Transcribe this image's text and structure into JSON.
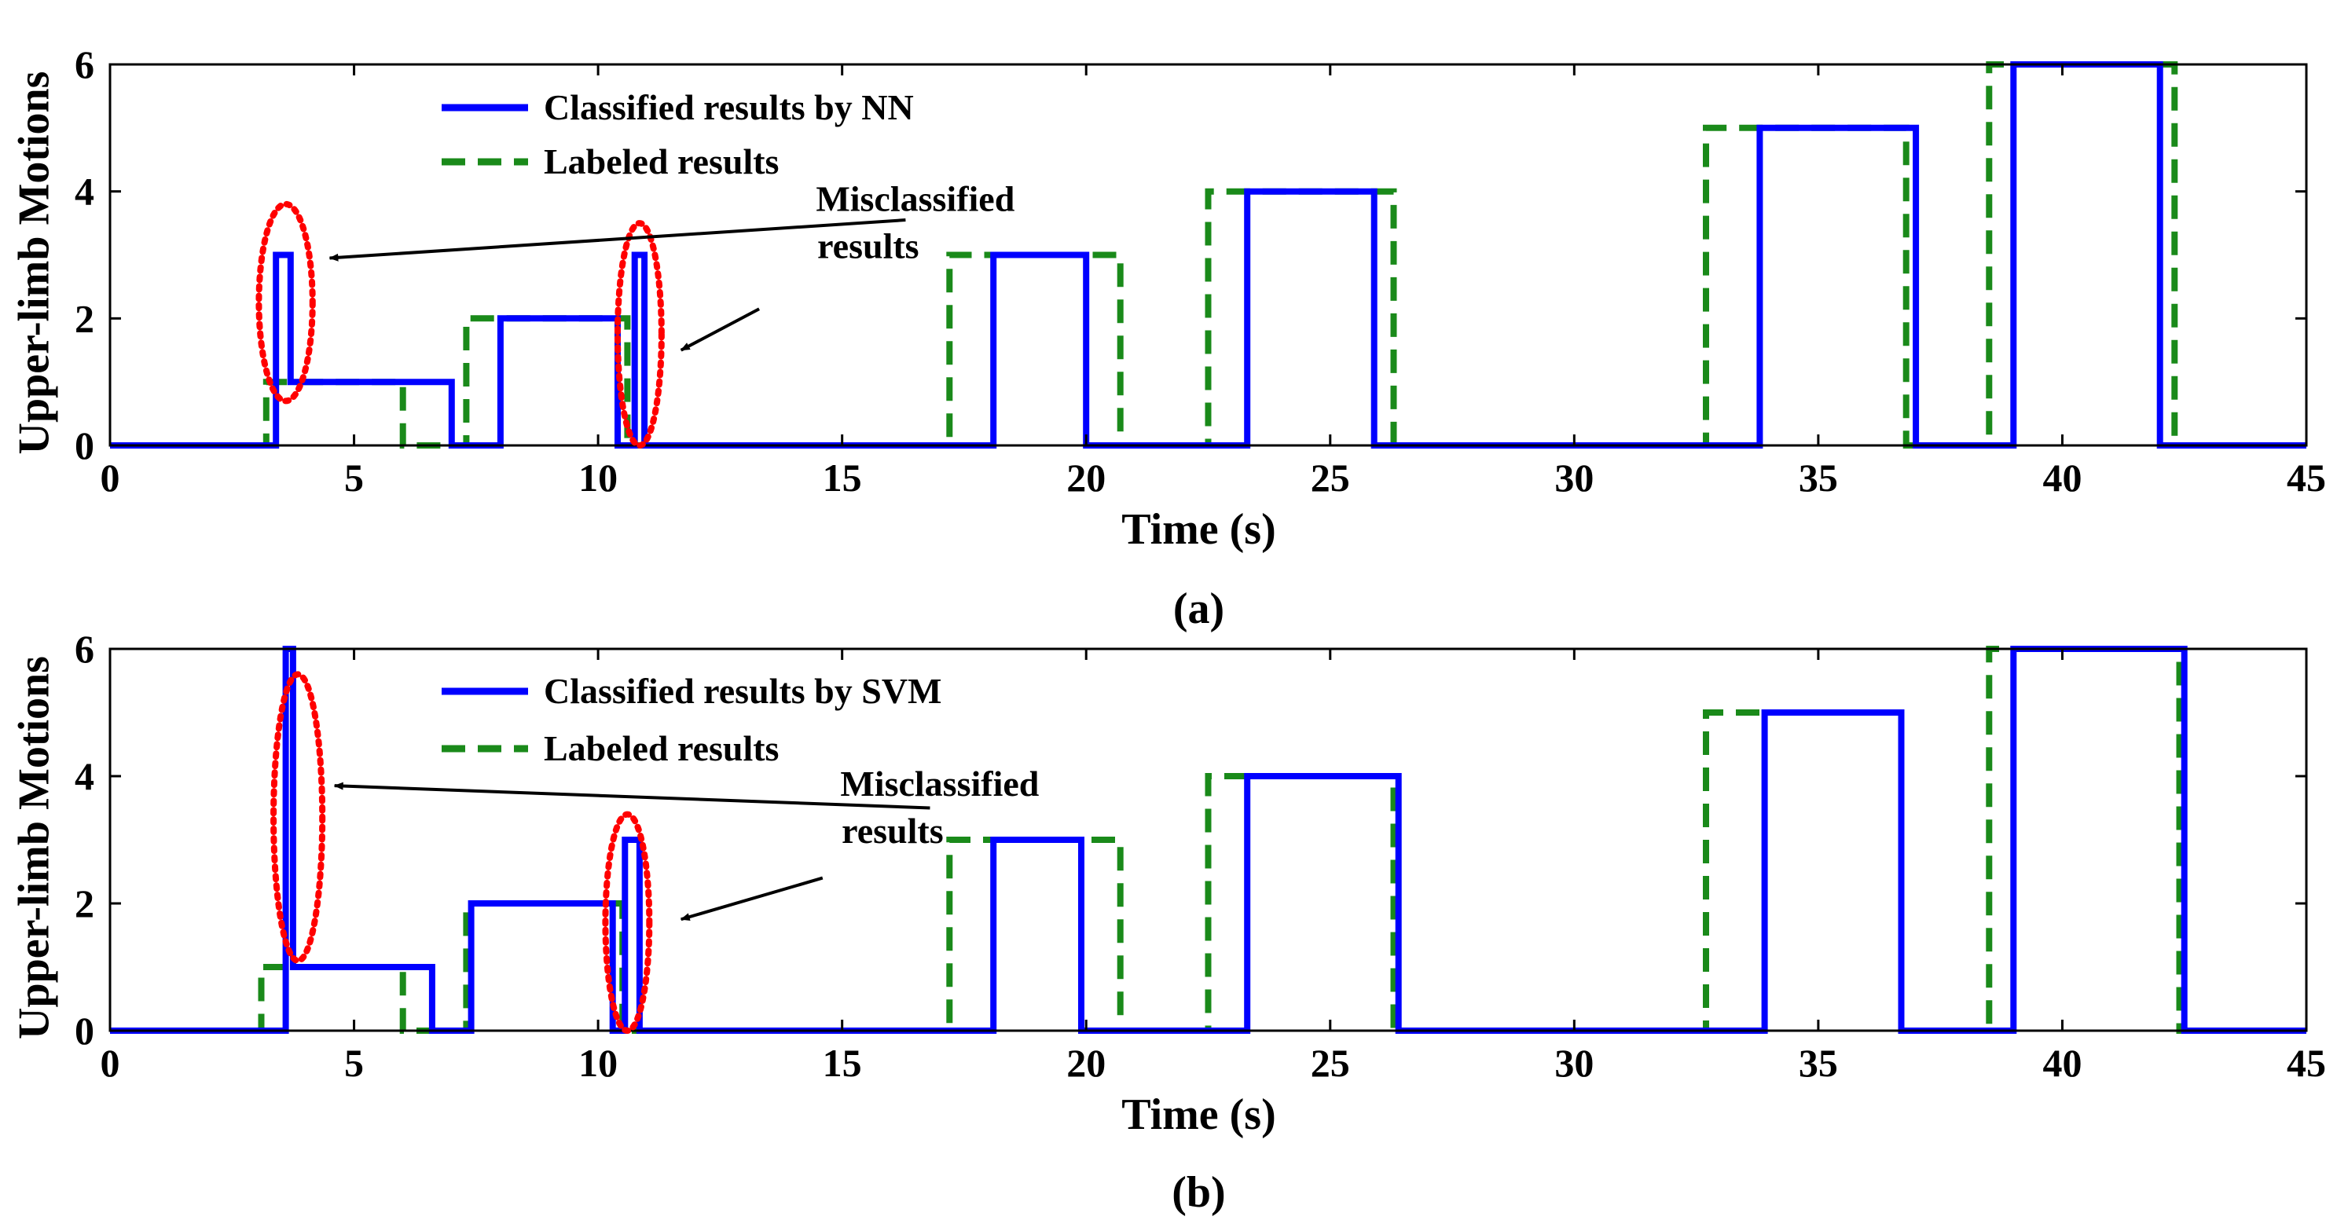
{
  "colors": {
    "classified": "#0000ff",
    "labeled": "#1a8a1a",
    "ellipse": "#ff0000",
    "axis": "#000000"
  },
  "chart_data": [
    {
      "type": "line",
      "panel": "a",
      "caption": "(a)",
      "xlabel": "Time (s)",
      "ylabel": "Upper-limb Motions",
      "xlim": [
        0,
        45
      ],
      "ylim": [
        0,
        6
      ],
      "xticks": [
        0,
        5,
        10,
        15,
        20,
        25,
        30,
        35,
        40,
        45
      ],
      "yticks": [
        0,
        2,
        4,
        6
      ],
      "series": [
        {
          "name": "Classified results by NN",
          "style": "solid",
          "points": [
            [
              0,
              0
            ],
            [
              3.4,
              0
            ],
            [
              3.4,
              3
            ],
            [
              3.7,
              3
            ],
            [
              3.7,
              1
            ],
            [
              7.0,
              1
            ],
            [
              7.0,
              0
            ],
            [
              8.0,
              0
            ],
            [
              8.0,
              2
            ],
            [
              10.4,
              2
            ],
            [
              10.4,
              0
            ],
            [
              10.75,
              0
            ],
            [
              10.75,
              3
            ],
            [
              10.95,
              3
            ],
            [
              10.95,
              0
            ],
            [
              18.1,
              0
            ],
            [
              18.1,
              3
            ],
            [
              20.0,
              3
            ],
            [
              20.0,
              0
            ],
            [
              23.3,
              0
            ],
            [
              23.3,
              4
            ],
            [
              25.9,
              4
            ],
            [
              25.9,
              0
            ],
            [
              33.8,
              0
            ],
            [
              33.8,
              5
            ],
            [
              37.0,
              5
            ],
            [
              37.0,
              0
            ],
            [
              39.0,
              0
            ],
            [
              39.0,
              6
            ],
            [
              42.0,
              6
            ],
            [
              42.0,
              0
            ],
            [
              45,
              0
            ]
          ]
        },
        {
          "name": "Labeled results",
          "style": "dashed",
          "points": [
            [
              0,
              0
            ],
            [
              3.2,
              0
            ],
            [
              3.2,
              1
            ],
            [
              6.0,
              1
            ],
            [
              6.0,
              0
            ],
            [
              7.3,
              0
            ],
            [
              7.3,
              2
            ],
            [
              10.6,
              2
            ],
            [
              10.6,
              0
            ],
            [
              17.2,
              0
            ],
            [
              17.2,
              3
            ],
            [
              20.7,
              3
            ],
            [
              20.7,
              0
            ],
            [
              22.5,
              0
            ],
            [
              22.5,
              4
            ],
            [
              26.3,
              4
            ],
            [
              26.3,
              0
            ],
            [
              32.7,
              0
            ],
            [
              32.7,
              5
            ],
            [
              36.8,
              5
            ],
            [
              36.8,
              0
            ],
            [
              38.5,
              0
            ],
            [
              38.5,
              6
            ],
            [
              42.3,
              6
            ],
            [
              42.3,
              0
            ],
            [
              45,
              0
            ]
          ]
        }
      ],
      "annotations": {
        "text_line1": "Misclassified",
        "text_line2": "results",
        "ellipses": [
          {
            "x_center": 3.6,
            "y_center": 2.25,
            "x_radius": 0.55,
            "y_radius": 1.55
          },
          {
            "x_center": 10.85,
            "y_center": 1.75,
            "x_radius": 0.45,
            "y_radius": 1.75
          }
        ],
        "arrows": [
          {
            "from": [
              16.3,
              3.55
            ],
            "to": [
              4.5,
              2.95
            ]
          },
          {
            "from": [
              13.3,
              2.15
            ],
            "to": [
              11.7,
              1.5
            ]
          }
        ],
        "text_anchor": [
          16.5,
          3.2
        ]
      }
    },
    {
      "type": "line",
      "panel": "b",
      "caption": "(b)",
      "xlabel": "Time (s)",
      "ylabel": "Upper-limb Motions",
      "xlim": [
        0,
        45
      ],
      "ylim": [
        0,
        6
      ],
      "xticks": [
        0,
        5,
        10,
        15,
        20,
        25,
        30,
        35,
        40,
        45
      ],
      "yticks": [
        0,
        2,
        4,
        6
      ],
      "series": [
        {
          "name": "Classified results by SVM",
          "style": "solid",
          "points": [
            [
              0,
              0
            ],
            [
              3.6,
              0
            ],
            [
              3.6,
              6
            ],
            [
              3.75,
              6
            ],
            [
              3.75,
              1
            ],
            [
              6.6,
              1
            ],
            [
              6.6,
              0
            ],
            [
              7.4,
              0
            ],
            [
              7.4,
              2
            ],
            [
              10.3,
              2
            ],
            [
              10.3,
              0
            ],
            [
              10.55,
              0
            ],
            [
              10.55,
              3
            ],
            [
              10.85,
              3
            ],
            [
              10.85,
              0
            ],
            [
              18.1,
              0
            ],
            [
              18.1,
              3
            ],
            [
              19.9,
              3
            ],
            [
              19.9,
              0
            ],
            [
              23.3,
              0
            ],
            [
              23.3,
              4
            ],
            [
              26.4,
              4
            ],
            [
              26.4,
              0
            ],
            [
              33.9,
              0
            ],
            [
              33.9,
              5
            ],
            [
              36.7,
              5
            ],
            [
              36.7,
              0
            ],
            [
              39.0,
              0
            ],
            [
              39.0,
              6
            ],
            [
              42.5,
              6
            ],
            [
              42.5,
              0
            ],
            [
              45,
              0
            ]
          ]
        },
        {
          "name": "Labeled results",
          "style": "dashed",
          "points": [
            [
              0,
              0
            ],
            [
              3.1,
              0
            ],
            [
              3.1,
              1
            ],
            [
              6.0,
              1
            ],
            [
              6.0,
              0
            ],
            [
              7.3,
              0
            ],
            [
              7.3,
              2
            ],
            [
              10.5,
              2
            ],
            [
              10.5,
              0
            ],
            [
              17.2,
              0
            ],
            [
              17.2,
              3
            ],
            [
              20.7,
              3
            ],
            [
              20.7,
              0
            ],
            [
              22.5,
              0
            ],
            [
              22.5,
              4
            ],
            [
              26.3,
              4
            ],
            [
              26.3,
              0
            ],
            [
              32.7,
              0
            ],
            [
              32.7,
              5
            ],
            [
              36.7,
              5
            ],
            [
              36.7,
              0
            ],
            [
              38.5,
              0
            ],
            [
              38.5,
              6
            ],
            [
              42.4,
              6
            ],
            [
              42.4,
              0
            ],
            [
              45,
              0
            ]
          ]
        }
      ],
      "annotations": {
        "text_line1": "Misclassified",
        "text_line2": "results",
        "ellipses": [
          {
            "x_center": 3.85,
            "y_center": 3.35,
            "x_radius": 0.5,
            "y_radius": 2.25
          },
          {
            "x_center": 10.6,
            "y_center": 1.7,
            "x_radius": 0.45,
            "y_radius": 1.7
          }
        ],
        "arrows": [
          {
            "from": [
              16.8,
              3.5
            ],
            "to": [
              4.6,
              3.85
            ]
          },
          {
            "from": [
              14.6,
              2.4
            ],
            "to": [
              11.7,
              1.75
            ]
          }
        ],
        "text_anchor": [
          17.0,
          3.2
        ]
      }
    }
  ]
}
